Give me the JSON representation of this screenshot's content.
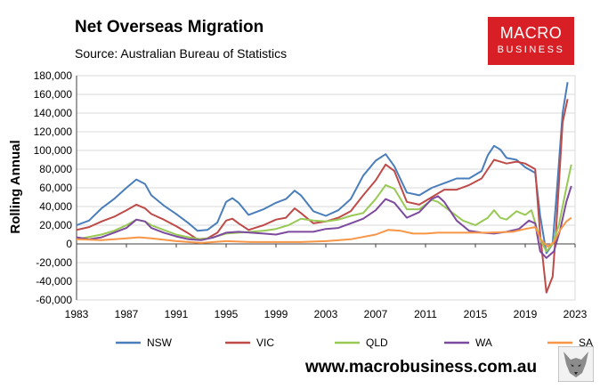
{
  "header": {
    "title": "Net Overseas Migration",
    "subtitle": "Source: Australian Bureau of Statistics"
  },
  "logo": {
    "line1": "MACRO",
    "line2": "BUSINESS"
  },
  "footer": {
    "url": "www.macrobusiness.com.au"
  },
  "colors": {
    "NSW": "#4a7ebb",
    "VIC": "#be4b48",
    "QLD": "#98c954",
    "WA": "#7d4b9e",
    "SA": "#f79646"
  },
  "chart_data": {
    "type": "line",
    "ylabel": "Rolling Annual",
    "xlim": [
      1983,
      2023
    ],
    "ylim": [
      -60000,
      180000
    ],
    "x_ticks": [
      1983,
      1987,
      1991,
      1995,
      1999,
      2003,
      2007,
      2011,
      2015,
      2019,
      2023
    ],
    "y_ticks": [
      -60000,
      -40000,
      -20000,
      0,
      20000,
      40000,
      60000,
      80000,
      100000,
      120000,
      140000,
      160000,
      180000
    ],
    "y_tick_labels": [
      "-60,000",
      "-40,000",
      "-20,000",
      "0",
      "20,000",
      "40,000",
      "60,000",
      "80,000",
      "100,000",
      "120,000",
      "140,000",
      "160,000",
      "180,000"
    ],
    "x_tick_labels": [
      "1983",
      "1987",
      "1991",
      "1995",
      "1999",
      "2003",
      "2007",
      "2011",
      "2015",
      "2019",
      "2023"
    ],
    "legend_position": "bottom",
    "series": [
      {
        "name": "NSW",
        "x": [
          1983,
          1984,
          1985,
          1986,
          1987,
          1987.8,
          1988.5,
          1989,
          1990,
          1991,
          1992,
          1992.7,
          1993.5,
          1994.3,
          1995,
          1995.5,
          1996,
          1996.8,
          1998,
          1999,
          1999.8,
          2000.5,
          2001,
          2002,
          2003,
          2004,
          2005,
          2006,
          2007,
          2007.8,
          2008.5,
          2009.5,
          2010.5,
          2011.5,
          2012.5,
          2013.5,
          2014.5,
          2015.5,
          2016,
          2016.5,
          2017,
          2017.5,
          2018.3,
          2019,
          2019.8,
          2020.2,
          2020.7,
          2021.2,
          2021.5,
          2022,
          2022.4
        ],
        "y": [
          20000,
          25000,
          38000,
          48000,
          60000,
          69000,
          64000,
          52000,
          41000,
          32000,
          22000,
          14000,
          15000,
          23000,
          45000,
          49000,
          44000,
          31000,
          37000,
          44000,
          48000,
          57000,
          52000,
          35000,
          30000,
          36000,
          48000,
          73000,
          89000,
          96000,
          83000,
          55000,
          52000,
          60000,
          65000,
          70000,
          70000,
          78000,
          95000,
          105000,
          101000,
          92000,
          90000,
          82000,
          76000,
          30000,
          -10000,
          0,
          50000,
          140000,
          173000
        ]
      },
      {
        "name": "VIC",
        "x": [
          1983,
          1984,
          1985,
          1986,
          1987,
          1987.8,
          1988.5,
          1989,
          1990,
          1991,
          1992,
          1992.7,
          1993.5,
          1994.3,
          1995,
          1995.5,
          1996,
          1996.8,
          1998,
          1999,
          1999.8,
          2000.5,
          2001,
          2002,
          2003,
          2004,
          2005,
          2006,
          2007,
          2007.8,
          2008.5,
          2009.5,
          2010.5,
          2011.5,
          2012.5,
          2013.5,
          2014.5,
          2015.5,
          2016,
          2016.5,
          2017,
          2017.5,
          2018.3,
          2019,
          2019.8,
          2020.2,
          2020.7,
          2021.2,
          2021.5,
          2022,
          2022.4
        ],
        "y": [
          15000,
          18000,
          24000,
          29000,
          36000,
          42000,
          38000,
          32000,
          26000,
          19000,
          11000,
          5000,
          6000,
          12000,
          25000,
          27000,
          22000,
          15000,
          20000,
          26000,
          28000,
          38000,
          33000,
          22000,
          24000,
          28000,
          35000,
          52000,
          68000,
          85000,
          78000,
          45000,
          42000,
          50000,
          58000,
          58000,
          63000,
          70000,
          80000,
          90000,
          88000,
          86000,
          88000,
          86000,
          80000,
          10000,
          -52000,
          -35000,
          20000,
          130000,
          155000
        ]
      },
      {
        "name": "QLD",
        "x": [
          1983,
          1985,
          1986,
          1987,
          1987.8,
          1988.5,
          1989,
          1990,
          1991,
          1992,
          1993,
          1994,
          1995,
          1996,
          1997,
          1998,
          1999,
          2000,
          2001,
          2002,
          2003,
          2004,
          2005,
          2006,
          2007,
          2007.8,
          2008.5,
          2009.5,
          2010.5,
          2011.5,
          2012,
          2013,
          2014,
          2015,
          2016,
          2016.5,
          2017,
          2017.5,
          2018.3,
          2019,
          2019.5,
          2020.2,
          2020.7,
          2021.2,
          2021.7,
          2022.3,
          2022.7
        ],
        "y": [
          5000,
          10000,
          14000,
          20000,
          26000,
          24000,
          20000,
          15000,
          10000,
          7000,
          5000,
          7000,
          11000,
          12000,
          13000,
          14000,
          16000,
          20000,
          27000,
          25000,
          24000,
          26000,
          30000,
          33000,
          48000,
          63000,
          59000,
          37000,
          37000,
          47000,
          45000,
          35000,
          25000,
          20000,
          28000,
          36000,
          28000,
          26000,
          35000,
          31000,
          36000,
          5000,
          -8000,
          0,
          20000,
          60000,
          85000
        ]
      },
      {
        "name": "WA",
        "x": [
          1983,
          1984,
          1985,
          1986,
          1987,
          1987.8,
          1988.5,
          1989,
          1990,
          1991,
          1992,
          1993,
          1994,
          1995,
          1996,
          1997,
          1998,
          1999,
          2000,
          2001,
          2002,
          2003,
          2004,
          2005,
          2006,
          2007,
          2007.8,
          2008.5,
          2009.5,
          2010.5,
          2011.5,
          2012,
          2012.5,
          2013.5,
          2014.5,
          2015.5,
          2016.5,
          2017.5,
          2018.5,
          2019.3,
          2019.8,
          2020.2,
          2020.7,
          2021.3,
          2021.8,
          2022.3,
          2022.7
        ],
        "y": [
          7000,
          5000,
          7000,
          12000,
          17000,
          26000,
          24000,
          17000,
          12000,
          8000,
          5000,
          4000,
          7000,
          12000,
          13000,
          12000,
          11000,
          10000,
          13000,
          13000,
          13000,
          16000,
          17000,
          22000,
          27000,
          36000,
          48000,
          44000,
          28000,
          34000,
          48000,
          51000,
          45000,
          25000,
          14000,
          12000,
          11000,
          13000,
          16000,
          25000,
          22000,
          -8000,
          -15000,
          -8000,
          15000,
          45000,
          62000
        ]
      },
      {
        "name": "SA",
        "x": [
          1983,
          1985,
          1987,
          1988,
          1989,
          1991,
          1993,
          1995,
          1997,
          1999,
          2001,
          2003,
          2005,
          2007,
          2008,
          2009,
          2010,
          2011,
          2012,
          2014,
          2016,
          2018,
          2019,
          2019.8,
          2020.3,
          2020.8,
          2021.3,
          2021.8,
          2022.3,
          2022.7
        ],
        "y": [
          5000,
          4000,
          6000,
          7000,
          6000,
          3000,
          1000,
          3000,
          2000,
          2000,
          2000,
          3000,
          5000,
          10000,
          15000,
          14000,
          11000,
          11000,
          12000,
          12000,
          12000,
          13000,
          16000,
          18000,
          4000,
          -3000,
          2000,
          15000,
          24000,
          28000
        ]
      }
    ]
  }
}
